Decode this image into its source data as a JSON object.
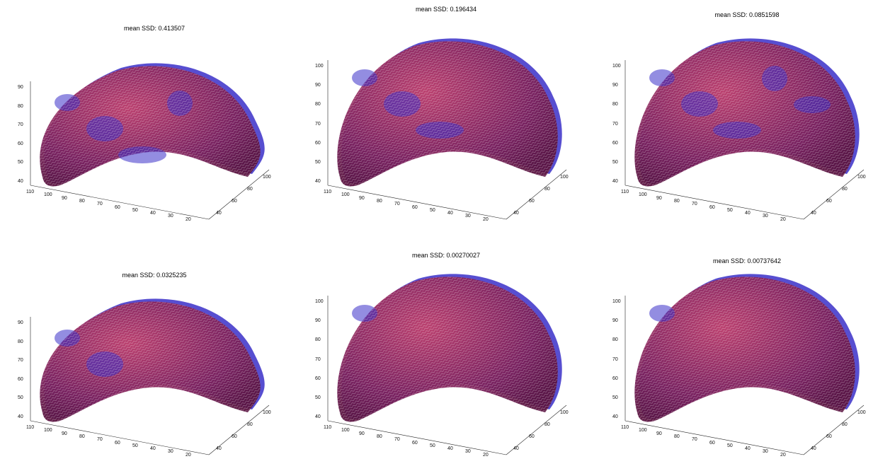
{
  "panels": [
    {
      "title": "mean SSD: 0.413507",
      "z_ticks": [
        "40",
        "50",
        "60",
        "70",
        "80",
        "90"
      ],
      "x_ticks": [
        "110",
        "100",
        "90",
        "80",
        "70",
        "60",
        "50",
        "40",
        "30",
        "20"
      ],
      "y_ticks": [
        "40",
        "60",
        "80",
        "100"
      ],
      "blue_cover": 0.35
    },
    {
      "title": "mean SSD: 0.196434",
      "z_ticks": [
        "40",
        "50",
        "60",
        "70",
        "80",
        "90",
        "100"
      ],
      "x_ticks": [
        "110",
        "100",
        "90",
        "80",
        "70",
        "60",
        "50",
        "40",
        "30",
        "20"
      ],
      "y_ticks": [
        "40",
        "60",
        "80",
        "100"
      ],
      "blue_cover": 0.25
    },
    {
      "title": "mean SSD: 0.0851598",
      "z_ticks": [
        "40",
        "50",
        "60",
        "70",
        "80",
        "90",
        "100"
      ],
      "x_ticks": [
        "110",
        "100",
        "90",
        "80",
        "70",
        "60",
        "50",
        "40",
        "30",
        "20"
      ],
      "y_ticks": [
        "40",
        "60",
        "80",
        "100"
      ],
      "blue_cover": 0.4
    },
    {
      "title": "mean SSD: 0.0325235",
      "z_ticks": [
        "40",
        "50",
        "60",
        "70",
        "80",
        "90"
      ],
      "x_ticks": [
        "110",
        "100",
        "90",
        "80",
        "70",
        "60",
        "50",
        "40",
        "30",
        "20"
      ],
      "y_ticks": [
        "40",
        "60",
        "80",
        "100"
      ],
      "blue_cover": 0.15
    },
    {
      "title": "mean SSD: 0.00270027",
      "z_ticks": [
        "40",
        "50",
        "60",
        "70",
        "80",
        "90",
        "100"
      ],
      "x_ticks": [
        "110",
        "100",
        "90",
        "80",
        "70",
        "60",
        "50",
        "40",
        "30",
        "20"
      ],
      "y_ticks": [
        "40",
        "60",
        "80",
        "100"
      ],
      "blue_cover": 0.1
    },
    {
      "title": "mean SSD: 0.00737642",
      "z_ticks": [
        "40",
        "50",
        "60",
        "70",
        "80",
        "90",
        "100"
      ],
      "x_ticks": [
        "110",
        "100",
        "90",
        "80",
        "70",
        "60",
        "50",
        "40",
        "30",
        "20"
      ],
      "y_ticks": [
        "40",
        "60",
        "80",
        "100"
      ],
      "blue_cover": 0.1
    }
  ],
  "colors": {
    "red_surface": "#b02a3a",
    "blue_surface": "#3a2fc8",
    "overlap": "#7a1f5a"
  }
}
